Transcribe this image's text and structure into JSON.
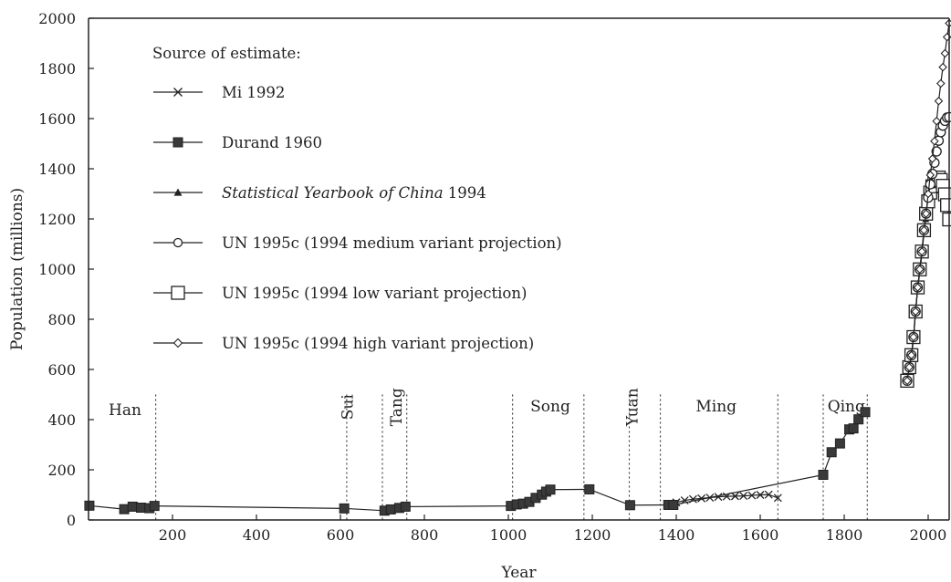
{
  "chart_data": {
    "type": "line",
    "title": "",
    "xlabel": "Year",
    "ylabel": "Population (millions)",
    "xlim": [
      0,
      2050
    ],
    "ylim": [
      0,
      2000
    ],
    "x_ticks": [
      "200",
      "400",
      "600",
      "800",
      "1000",
      "1200",
      "1400",
      "1600",
      "1800",
      "2000"
    ],
    "x_tick_values": [
      200,
      400,
      600,
      800,
      1000,
      1200,
      1400,
      1600,
      1800,
      2000
    ],
    "y_ticks": [
      "0",
      "200",
      "400",
      "600",
      "800",
      "1000",
      "1200",
      "1400",
      "1600",
      "1800",
      "2000"
    ],
    "y_tick_values": [
      0,
      200,
      400,
      600,
      800,
      1000,
      1200,
      1400,
      1600,
      1800,
      2000
    ],
    "legend": {
      "title": "Source of estimate:",
      "placement": "top-left",
      "entries": [
        {
          "key": "mi",
          "label": "Mi 1992",
          "italic_part": "",
          "marker": "x-mark"
        },
        {
          "key": "durand",
          "label": "Durand 1960",
          "italic_part": "",
          "marker": "filled-square"
        },
        {
          "key": "syc",
          "label": " 1994",
          "italic_part": "Statistical Yearbook of China",
          "marker": "filled-triangle"
        },
        {
          "key": "un_med",
          "label": "UN 1995c (1994 medium variant projection)",
          "italic_part": "",
          "marker": "open-circle"
        },
        {
          "key": "un_low",
          "label": "UN 1995c (1994 low variant projection)",
          "italic_part": "",
          "marker": "open-square"
        },
        {
          "key": "un_high",
          "label": "UN 1995c (1994 high variant projection)",
          "italic_part": "",
          "marker": "open-diamond"
        }
      ]
    },
    "dynasties": [
      {
        "name": "Han",
        "label_x": 87,
        "label_y": 440,
        "vertical": false,
        "boundaries": [
          160
        ]
      },
      {
        "name": "Sui",
        "label_x": 616,
        "label_y": 450,
        "vertical": true,
        "boundaries": [
          615
        ]
      },
      {
        "name": "Tang",
        "label_x": 733,
        "label_y": 450,
        "vertical": true,
        "boundaries": [
          700,
          758
        ]
      },
      {
        "name": "Song",
        "label_x": 1100,
        "label_y": 455,
        "vertical": false,
        "boundaries": [
          1010,
          1180
        ]
      },
      {
        "name": "Yuan",
        "label_x": 1295,
        "label_y": 450,
        "vertical": true,
        "boundaries": [
          1288,
          1362
        ]
      },
      {
        "name": "Ming",
        "label_x": 1495,
        "label_y": 455,
        "vertical": false,
        "boundaries": [
          1642
        ]
      },
      {
        "name": "Qing",
        "label_x": 1805,
        "label_y": 455,
        "vertical": false,
        "boundaries": [
          1750,
          1855
        ]
      }
    ],
    "series": [
      {
        "name": "Durand 1960",
        "marker": "filled-square",
        "x": [
          2,
          85,
          105,
          125,
          145,
          157,
          609,
          705,
          720,
          740,
          755,
          1006,
          1020,
          1035,
          1050,
          1065,
          1080,
          1090,
          1100,
          1193,
          1290,
          1381,
          1393,
          1750,
          1770,
          1790,
          1812,
          1822,
          1834,
          1850
        ],
        "y": [
          57,
          43,
          53,
          49,
          47,
          56,
          46,
          37,
          42,
          48,
          53,
          56,
          62,
          65,
          72,
          88,
          101,
          113,
          121,
          122,
          59,
          60,
          60,
          180,
          270,
          305,
          361,
          365,
          401,
          430
        ]
      },
      {
        "name": "Mi 1992",
        "marker": "x-mark",
        "x": [
          1381,
          1400,
          1420,
          1440,
          1460,
          1480,
          1500,
          1520,
          1540,
          1560,
          1580,
          1600,
          1620,
          1642
        ],
        "y": [
          60,
          70,
          78,
          83,
          86,
          89,
          92,
          94,
          95,
          96,
          98,
          100,
          101,
          88
        ]
      },
      {
        "name": "Statistical Yearbook of China 1994",
        "marker": "filled-triangle",
        "x": [
          1949,
          1953,
          1957,
          1962,
          1965,
          1970,
          1975,
          1980,
          1985,
          1990,
          1994
        ],
        "y": [
          542,
          588,
          647,
          673,
          725,
          830,
          924,
          987,
          1059,
          1143,
          1199
        ]
      },
      {
        "name": "UN 1995c (1994 medium variant projection)",
        "marker": "open-circle",
        "x": [
          1950,
          1955,
          1960,
          1965,
          1970,
          1975,
          1980,
          1985,
          1990,
          1995,
          2000,
          2005,
          2010,
          2015,
          2020,
          2025,
          2030,
          2035,
          2040,
          2045,
          2050
        ],
        "y": [
          555,
          609,
          657,
          729,
          831,
          927,
          999,
          1070,
          1155,
          1221,
          1285,
          1338,
          1380,
          1424,
          1469,
          1512,
          1546,
          1572,
          1591,
          1604,
          1606
        ]
      },
      {
        "name": "UN 1995c (1994 low variant projection)",
        "marker": "open-square",
        "x": [
          1950,
          1955,
          1960,
          1965,
          1970,
          1975,
          1980,
          1985,
          1990,
          1995,
          2000,
          2005,
          2010,
          2015,
          2020,
          2025,
          2030,
          2035,
          2040,
          2045,
          2050
        ],
        "y": [
          555,
          609,
          657,
          729,
          831,
          927,
          999,
          1070,
          1155,
          1221,
          1270,
          1305,
          1330,
          1350,
          1362,
          1365,
          1355,
          1332,
          1298,
          1255,
          1198
        ]
      },
      {
        "name": "UN 1995c (1994 high variant projection)",
        "marker": "open-diamond",
        "x": [
          1950,
          1955,
          1960,
          1965,
          1970,
          1975,
          1980,
          1985,
          1990,
          1995,
          2000,
          2005,
          2010,
          2015,
          2020,
          2025,
          2030,
          2035,
          2040,
          2045,
          2050
        ],
        "y": [
          555,
          609,
          657,
          729,
          831,
          927,
          999,
          1070,
          1155,
          1221,
          1300,
          1375,
          1440,
          1510,
          1590,
          1670,
          1740,
          1805,
          1860,
          1925,
          1980
        ]
      }
    ]
  }
}
